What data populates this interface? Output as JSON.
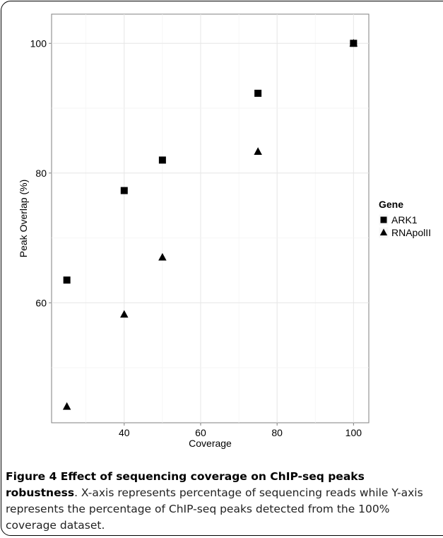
{
  "chart_data": {
    "type": "scatter",
    "xlabel": "Coverage",
    "ylabel": "Peak Overlap (%)",
    "xlim": [
      21,
      104
    ],
    "ylim": [
      41.5,
      104.5
    ],
    "x_ticks": [
      40,
      60,
      80,
      100
    ],
    "y_ticks": [
      60,
      80,
      100
    ],
    "grid": true,
    "legend_title": "Gene",
    "legend_position": "right",
    "series": [
      {
        "name": "ARK1",
        "marker": "square",
        "color": "#000000",
        "points": [
          [
            25,
            63.5
          ],
          [
            40,
            77.3
          ],
          [
            50,
            82.0
          ],
          [
            75,
            92.3
          ],
          [
            100,
            100.0
          ]
        ]
      },
      {
        "name": "RNApolII",
        "marker": "triangle",
        "color": "#000000",
        "points": [
          [
            25,
            44.0
          ],
          [
            40,
            58.2
          ],
          [
            50,
            67.0
          ],
          [
            75,
            83.3
          ],
          [
            100,
            100.0
          ]
        ]
      }
    ]
  },
  "caption": {
    "bold": "Figure 4 Effect of sequencing coverage on ChIP-seq peaks robustness",
    "text": ". X-axis represents percentage of sequencing reads while Y-axis represents the percentage of ChIP-seq peaks detected from the 100% coverage dataset."
  }
}
